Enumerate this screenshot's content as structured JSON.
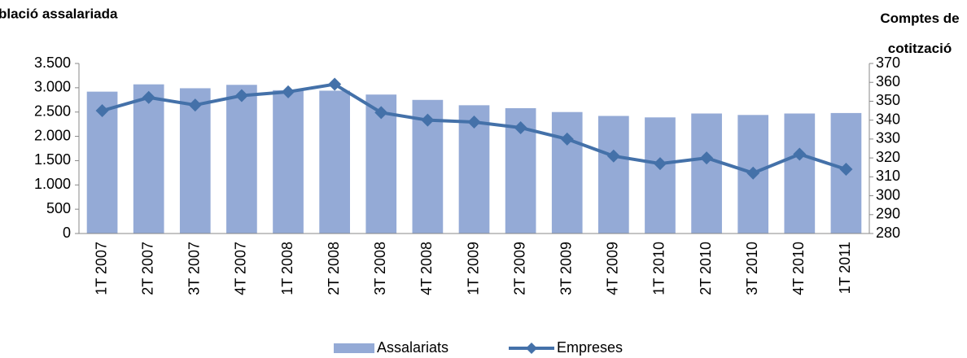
{
  "chart_data": {
    "type": "bar_line",
    "title": "blació assalariada",
    "y2_title": "Comptes de cotització",
    "categories": [
      "1T 2007",
      "2T 2007",
      "3T 2007",
      "4T 2007",
      "1T 2008",
      "2T 2008",
      "3T 2008",
      "4T 2008",
      "1T 2009",
      "2T 2009",
      "3T 2009",
      "4T 2009",
      "1T 2010",
      "2T 2010",
      "3T 2010",
      "4T 2010",
      "1T 2011"
    ],
    "series": [
      {
        "name": "Assalariats",
        "type": "bar",
        "color": "#94aad6",
        "values": [
          2920,
          3070,
          2990,
          3060,
          2950,
          2940,
          2860,
          2750,
          2640,
          2580,
          2500,
          2420,
          2390,
          2470,
          2440,
          2470,
          2480
        ]
      },
      {
        "name": "Empreses",
        "type": "line",
        "axis": "y2",
        "color": "#4471a9",
        "values": [
          345,
          352,
          348,
          353,
          355,
          359,
          344,
          340,
          339,
          336,
          330,
          321,
          317,
          320,
          312,
          322,
          314
        ]
      }
    ],
    "ylim": [
      0,
      3500
    ],
    "yticks": [
      0,
      500,
      {
        "value": 1000,
        "label": "1.000"
      },
      {
        "value": 1500,
        "label": "1.500"
      },
      {
        "value": 2000,
        "label": "2.000"
      },
      {
        "value": 2500,
        "label": "2.500"
      },
      {
        "value": 3000,
        "label": "3.000"
      },
      {
        "value": 3500,
        "label": "3.500"
      }
    ],
    "y2lim": [
      280,
      370
    ],
    "y2ticks": [
      280,
      290,
      300,
      310,
      320,
      330,
      340,
      350,
      360,
      370
    ],
    "legend": "bottom"
  }
}
